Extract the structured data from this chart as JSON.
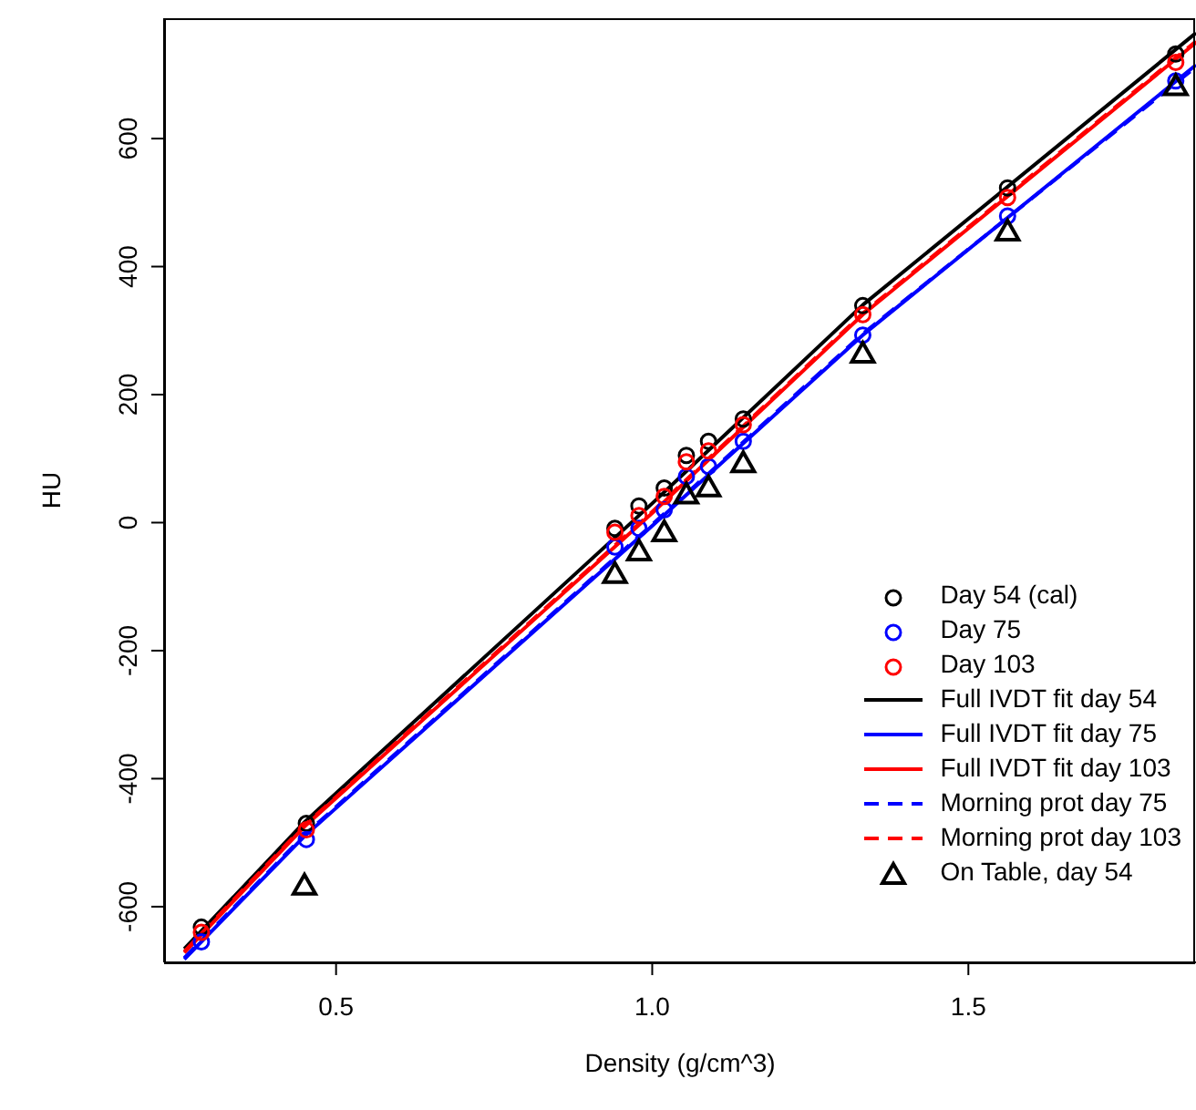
{
  "chart_data": {
    "type": "scatter",
    "xlabel": "Density (g/cm^3)",
    "ylabel": "HU",
    "xlim": [
      0.228,
      1.86
    ],
    "ylim": [
      -687,
      788
    ],
    "xticks": [
      0.5,
      {
        "value": 1,
        "label": "1.0"
      },
      1.5
    ],
    "yticks": [
      -600,
      -400,
      -200,
      0,
      200,
      400,
      600
    ],
    "grid": false,
    "legend": "bottom right",
    "x": [
      0.287,
      0.453,
      0.941,
      0.979,
      1.019,
      1.054,
      1.089,
      1.144,
      1.333,
      1.562,
      1.828
    ],
    "series": [
      {
        "name": "Day 54 (cal)",
        "marker": "circle",
        "color": "#000000",
        "values": [
          -632,
          -470,
          -9,
          26,
          54,
          105,
          127,
          162,
          339,
          523,
          732
        ]
      },
      {
        "name": "Day 75",
        "marker": "circle",
        "color": "#0000ff",
        "values": [
          -655,
          -495,
          -38,
          -9,
          20,
          72,
          88,
          127,
          293,
          479,
          690
        ]
      },
      {
        "name": "Day 103",
        "marker": "circle",
        "color": "#ff0000",
        "values": [
          -640,
          -480,
          -15,
          11,
          41,
          95,
          112,
          153,
          325,
          508,
          719
        ]
      },
      {
        "name": "Full IVDT fit day 54",
        "type": "line",
        "marker": "none",
        "line_style": "solid",
        "color": "#000000",
        "x": [
          0.26,
          0.45,
          1.0,
          1.333,
          1.86
        ],
        "values": [
          -666,
          -468,
          30,
          340,
          765
        ]
      },
      {
        "name": "Full IVDT fit day 75",
        "type": "line",
        "marker": "none",
        "line_style": "solid",
        "color": "#0000ff",
        "x": [
          0.26,
          0.45,
          1.0,
          1.333,
          1.86
        ],
        "values": [
          -682,
          -490,
          -5,
          293,
          715
        ]
      },
      {
        "name": "Full IVDT fit day 103",
        "type": "line",
        "marker": "none",
        "line_style": "solid",
        "color": "#ff0000",
        "x": [
          0.26,
          0.45,
          1.0,
          1.333,
          1.86
        ],
        "values": [
          -672,
          -475,
          15,
          325,
          750
        ]
      },
      {
        "name": "Morning prot day 75",
        "type": "line",
        "marker": "none",
        "line_style": "dashed",
        "color": "#0000ff",
        "x": [
          0.26,
          0.45,
          1.0,
          1.333,
          1.86
        ],
        "values": [
          -680,
          -488,
          -3,
          295,
          712
        ]
      },
      {
        "name": "Morning prot day 103",
        "type": "line",
        "marker": "none",
        "line_style": "dashed",
        "color": "#ff0000",
        "x": [
          0.26,
          0.45,
          1.0,
          1.333,
          1.86
        ],
        "values": [
          -670,
          -473,
          17,
          327,
          752
        ]
      },
      {
        "name": "On Table, day 54",
        "marker": "triangle",
        "color": "#000000",
        "x": [
          0.45,
          0.941,
          0.979,
          1.019,
          1.054,
          1.089,
          1.144,
          1.333,
          1.562,
          1.828
        ],
        "values": [
          -567,
          -80,
          -45,
          -15,
          44,
          55,
          93,
          264,
          455,
          682
        ]
      }
    ]
  }
}
